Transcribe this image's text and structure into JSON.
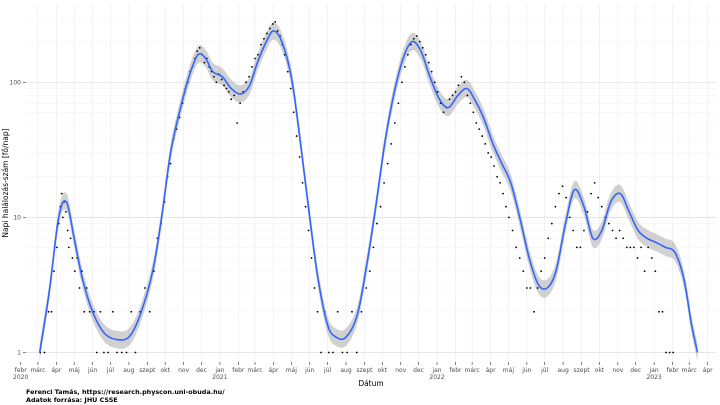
{
  "chart_data": {
    "type": "scatter",
    "title": "",
    "xlabel": "Dátum",
    "ylabel": "Napi halálozás-szám [fő/nap]",
    "y_scale": "log",
    "ylim": [
      0.85,
      380
    ],
    "y_ticks": [
      1,
      10,
      100
    ],
    "y_tick_labels": [
      "1",
      "10",
      "100"
    ],
    "xlim": [
      "2020-02-10",
      "2023-04-15"
    ],
    "x_ticks": [
      {
        "date": "2020-02-01",
        "label": "febr",
        "year": "2020"
      },
      {
        "date": "2020-03-01",
        "label": "márc",
        "year": ""
      },
      {
        "date": "2020-04-01",
        "label": "ápr",
        "year": ""
      },
      {
        "date": "2020-05-01",
        "label": "máj",
        "year": ""
      },
      {
        "date": "2020-06-01",
        "label": "jún",
        "year": ""
      },
      {
        "date": "2020-07-01",
        "label": "júl",
        "year": ""
      },
      {
        "date": "2020-08-01",
        "label": "aug",
        "year": ""
      },
      {
        "date": "2020-09-01",
        "label": "szept",
        "year": ""
      },
      {
        "date": "2020-10-01",
        "label": "okt",
        "year": ""
      },
      {
        "date": "2020-11-01",
        "label": "nov",
        "year": ""
      },
      {
        "date": "2020-12-01",
        "label": "dec",
        "year": ""
      },
      {
        "date": "2021-01-01",
        "label": "jan",
        "year": "2021"
      },
      {
        "date": "2021-02-01",
        "label": "febr",
        "year": ""
      },
      {
        "date": "2021-03-01",
        "label": "márc",
        "year": ""
      },
      {
        "date": "2021-04-01",
        "label": "ápr",
        "year": ""
      },
      {
        "date": "2021-05-01",
        "label": "máj",
        "year": ""
      },
      {
        "date": "2021-06-01",
        "label": "jún",
        "year": ""
      },
      {
        "date": "2021-07-01",
        "label": "júl",
        "year": ""
      },
      {
        "date": "2021-08-01",
        "label": "aug",
        "year": ""
      },
      {
        "date": "2021-09-01",
        "label": "szept",
        "year": ""
      },
      {
        "date": "2021-10-01",
        "label": "okt",
        "year": ""
      },
      {
        "date": "2021-11-01",
        "label": "nov",
        "year": ""
      },
      {
        "date": "2021-12-01",
        "label": "dec",
        "year": ""
      },
      {
        "date": "2022-01-01",
        "label": "jan",
        "year": "2022"
      },
      {
        "date": "2022-02-01",
        "label": "febr",
        "year": ""
      },
      {
        "date": "2022-03-01",
        "label": "márc",
        "year": ""
      },
      {
        "date": "2022-04-01",
        "label": "ápr",
        "year": ""
      },
      {
        "date": "2022-05-01",
        "label": "máj",
        "year": ""
      },
      {
        "date": "2022-06-01",
        "label": "jún",
        "year": ""
      },
      {
        "date": "2022-07-01",
        "label": "júl",
        "year": ""
      },
      {
        "date": "2022-08-01",
        "label": "aug",
        "year": ""
      },
      {
        "date": "2022-09-01",
        "label": "szept",
        "year": ""
      },
      {
        "date": "2022-10-01",
        "label": "okt",
        "year": ""
      },
      {
        "date": "2022-11-01",
        "label": "nov",
        "year": ""
      },
      {
        "date": "2022-12-01",
        "label": "dec",
        "year": ""
      },
      {
        "date": "2023-01-01",
        "label": "jan",
        "year": "2023"
      },
      {
        "date": "2023-02-01",
        "label": "febr",
        "year": ""
      },
      {
        "date": "2023-03-01",
        "label": "márc",
        "year": ""
      },
      {
        "date": "2023-04-01",
        "label": "ápr",
        "year": ""
      }
    ],
    "grid": true,
    "colors": {
      "points": "#000000",
      "trend": "#3366ff",
      "band": "#999999"
    },
    "trend": {
      "x": [
        "2020-03-04",
        "2020-03-20",
        "2020-04-05",
        "2020-04-18",
        "2020-05-01",
        "2020-05-15",
        "2020-06-01",
        "2020-06-20",
        "2020-07-10",
        "2020-08-01",
        "2020-08-20",
        "2020-09-10",
        "2020-09-25",
        "2020-10-10",
        "2020-10-25",
        "2020-11-10",
        "2020-11-25",
        "2020-12-08",
        "2020-12-20",
        "2021-01-05",
        "2021-01-20",
        "2021-02-05",
        "2021-02-20",
        "2021-03-05",
        "2021-03-20",
        "2021-04-01",
        "2021-04-15",
        "2021-05-01",
        "2021-05-15",
        "2021-06-01",
        "2021-06-15",
        "2021-07-01",
        "2021-07-15",
        "2021-08-01",
        "2021-08-20",
        "2021-09-05",
        "2021-09-20",
        "2021-10-05",
        "2021-10-20",
        "2021-11-05",
        "2021-11-20",
        "2021-12-05",
        "2021-12-20",
        "2022-01-05",
        "2022-01-20",
        "2022-02-05",
        "2022-02-20",
        "2022-03-05",
        "2022-03-20",
        "2022-04-05",
        "2022-04-20",
        "2022-05-05",
        "2022-05-20",
        "2022-06-05",
        "2022-06-20",
        "2022-07-05",
        "2022-07-20",
        "2022-08-05",
        "2022-08-20",
        "2022-09-05",
        "2022-09-20",
        "2022-10-05",
        "2022-10-20",
        "2022-11-05",
        "2022-11-20",
        "2022-12-05",
        "2022-12-20",
        "2023-01-05",
        "2023-01-20",
        "2023-02-05",
        "2023-02-20",
        "2023-03-05",
        "2023-03-15"
      ],
      "y": [
        1,
        2.8,
        10,
        13,
        7,
        3.5,
        2,
        1.4,
        1.25,
        1.3,
        1.9,
        4,
        10,
        30,
        60,
        110,
        160,
        150,
        120,
        110,
        90,
        82,
        95,
        140,
        200,
        240,
        200,
        110,
        40,
        10,
        3.5,
        1.6,
        1.3,
        1.3,
        1.9,
        4.5,
        12,
        35,
        80,
        150,
        200,
        170,
        110,
        75,
        65,
        80,
        90,
        75,
        55,
        35,
        25,
        18,
        10,
        5,
        3.2,
        3,
        4,
        9,
        16,
        12,
        7,
        8,
        13,
        15,
        11,
        8,
        7,
        6.5,
        6,
        5.5,
        3.5,
        1.6,
        1
      ]
    },
    "points": [
      [
        "2020-03-05",
        1
      ],
      [
        "2020-03-12",
        1
      ],
      [
        "2020-03-19",
        2
      ],
      [
        "2020-03-24",
        2
      ],
      [
        "2020-03-28",
        4
      ],
      [
        "2020-04-02",
        6
      ],
      [
        "2020-04-05",
        9
      ],
      [
        "2020-04-08",
        12
      ],
      [
        "2020-04-10",
        15
      ],
      [
        "2020-04-12",
        10
      ],
      [
        "2020-04-14",
        13
      ],
      [
        "2020-04-17",
        11
      ],
      [
        "2020-04-20",
        8
      ],
      [
        "2020-04-22",
        6
      ],
      [
        "2020-04-25",
        7
      ],
      [
        "2020-04-28",
        5
      ],
      [
        "2020-05-02",
        4
      ],
      [
        "2020-05-06",
        5
      ],
      [
        "2020-05-10",
        3
      ],
      [
        "2020-05-14",
        4
      ],
      [
        "2020-05-18",
        2
      ],
      [
        "2020-05-22",
        3
      ],
      [
        "2020-05-27",
        2
      ],
      [
        "2020-06-03",
        2
      ],
      [
        "2020-06-08",
        1
      ],
      [
        "2020-06-14",
        2
      ],
      [
        "2020-06-20",
        1
      ],
      [
        "2020-06-27",
        1
      ],
      [
        "2020-07-05",
        2
      ],
      [
        "2020-07-12",
        1
      ],
      [
        "2020-07-20",
        1
      ],
      [
        "2020-07-28",
        1
      ],
      [
        "2020-08-05",
        2
      ],
      [
        "2020-08-12",
        1
      ],
      [
        "2020-08-20",
        2
      ],
      [
        "2020-08-28",
        3
      ],
      [
        "2020-09-05",
        2
      ],
      [
        "2020-09-12",
        4
      ],
      [
        "2020-09-18",
        7
      ],
      [
        "2020-09-24",
        9
      ],
      [
        "2020-09-30",
        13
      ],
      [
        "2020-10-05",
        20
      ],
      [
        "2020-10-10",
        25
      ],
      [
        "2020-10-15",
        38
      ],
      [
        "2020-10-20",
        45
      ],
      [
        "2020-10-25",
        55
      ],
      [
        "2020-10-30",
        70
      ],
      [
        "2020-11-04",
        90
      ],
      [
        "2020-11-08",
        100
      ],
      [
        "2020-11-12",
        120
      ],
      [
        "2020-11-16",
        130
      ],
      [
        "2020-11-20",
        150
      ],
      [
        "2020-11-24",
        170
      ],
      [
        "2020-11-28",
        180
      ],
      [
        "2020-12-02",
        160
      ],
      [
        "2020-12-06",
        140
      ],
      [
        "2020-12-10",
        150
      ],
      [
        "2020-12-14",
        130
      ],
      [
        "2020-12-18",
        120
      ],
      [
        "2020-12-22",
        110
      ],
      [
        "2020-12-26",
        100
      ],
      [
        "2020-12-30",
        115
      ],
      [
        "2021-01-04",
        105
      ],
      [
        "2021-01-08",
        95
      ],
      [
        "2021-01-12",
        90
      ],
      [
        "2021-01-16",
        85
      ],
      [
        "2021-01-20",
        75
      ],
      [
        "2021-01-25",
        80
      ],
      [
        "2021-01-30",
        50
      ],
      [
        "2021-02-04",
        70
      ],
      [
        "2021-02-09",
        85
      ],
      [
        "2021-02-14",
        100
      ],
      [
        "2021-02-19",
        110
      ],
      [
        "2021-02-24",
        130
      ],
      [
        "2021-03-01",
        150
      ],
      [
        "2021-03-06",
        160
      ],
      [
        "2021-03-11",
        190
      ],
      [
        "2021-03-16",
        210
      ],
      [
        "2021-03-21",
        230
      ],
      [
        "2021-03-26",
        250
      ],
      [
        "2021-03-31",
        270
      ],
      [
        "2021-04-04",
        280
      ],
      [
        "2021-04-08",
        240
      ],
      [
        "2021-04-12",
        220
      ],
      [
        "2021-04-16",
        190
      ],
      [
        "2021-04-20",
        160
      ],
      [
        "2021-04-25",
        120
      ],
      [
        "2021-04-30",
        90
      ],
      [
        "2021-05-05",
        60
      ],
      [
        "2021-05-10",
        40
      ],
      [
        "2021-05-15",
        28
      ],
      [
        "2021-05-20",
        18
      ],
      [
        "2021-05-25",
        12
      ],
      [
        "2021-05-30",
        8
      ],
      [
        "2021-06-04",
        5
      ],
      [
        "2021-06-09",
        3
      ],
      [
        "2021-06-14",
        2
      ],
      [
        "2021-06-20",
        1
      ],
      [
        "2021-06-26",
        2
      ],
      [
        "2021-07-03",
        1
      ],
      [
        "2021-07-10",
        1
      ],
      [
        "2021-07-18",
        2
      ],
      [
        "2021-07-26",
        1
      ],
      [
        "2021-08-03",
        1
      ],
      [
        "2021-08-11",
        2
      ],
      [
        "2021-08-19",
        1
      ],
      [
        "2021-08-27",
        2
      ],
      [
        "2021-09-04",
        3
      ],
      [
        "2021-09-10",
        4
      ],
      [
        "2021-09-16",
        6
      ],
      [
        "2021-09-22",
        9
      ],
      [
        "2021-09-28",
        12
      ],
      [
        "2021-10-04",
        18
      ],
      [
        "2021-10-10",
        25
      ],
      [
        "2021-10-16",
        35
      ],
      [
        "2021-10-22",
        50
      ],
      [
        "2021-10-28",
        70
      ],
      [
        "2021-11-03",
        100
      ],
      [
        "2021-11-08",
        130
      ],
      [
        "2021-11-13",
        160
      ],
      [
        "2021-11-18",
        190
      ],
      [
        "2021-11-23",
        210
      ],
      [
        "2021-11-28",
        220
      ],
      [
        "2021-12-03",
        200
      ],
      [
        "2021-12-08",
        180
      ],
      [
        "2021-12-13",
        160
      ],
      [
        "2021-12-18",
        140
      ],
      [
        "2021-12-23",
        120
      ],
      [
        "2021-12-28",
        100
      ],
      [
        "2022-01-02",
        85
      ],
      [
        "2022-01-07",
        70
      ],
      [
        "2022-01-12",
        60
      ],
      [
        "2022-01-17",
        65
      ],
      [
        "2022-01-22",
        75
      ],
      [
        "2022-01-27",
        80
      ],
      [
        "2022-02-01",
        85
      ],
      [
        "2022-02-06",
        95
      ],
      [
        "2022-02-11",
        110
      ],
      [
        "2022-02-16",
        100
      ],
      [
        "2022-02-21",
        80
      ],
      [
        "2022-02-26",
        70
      ],
      [
        "2022-03-03",
        60
      ],
      [
        "2022-03-08",
        50
      ],
      [
        "2022-03-13",
        45
      ],
      [
        "2022-03-18",
        40
      ],
      [
        "2022-03-23",
        35
      ],
      [
        "2022-03-28",
        30
      ],
      [
        "2022-04-02",
        28
      ],
      [
        "2022-04-07",
        24
      ],
      [
        "2022-04-12",
        20
      ],
      [
        "2022-04-17",
        18
      ],
      [
        "2022-04-22",
        15
      ],
      [
        "2022-04-27",
        12
      ],
      [
        "2022-05-02",
        10
      ],
      [
        "2022-05-08",
        8
      ],
      [
        "2022-05-14",
        6
      ],
      [
        "2022-05-20",
        5
      ],
      [
        "2022-05-26",
        4
      ],
      [
        "2022-06-01",
        3
      ],
      [
        "2022-06-07",
        3
      ],
      [
        "2022-06-13",
        2
      ],
      [
        "2022-06-19",
        3
      ],
      [
        "2022-06-25",
        4
      ],
      [
        "2022-07-01",
        5
      ],
      [
        "2022-07-07",
        7
      ],
      [
        "2022-07-13",
        9
      ],
      [
        "2022-07-19",
        12
      ],
      [
        "2022-07-25",
        15
      ],
      [
        "2022-07-31",
        17
      ],
      [
        "2022-08-06",
        14
      ],
      [
        "2022-08-12",
        10
      ],
      [
        "2022-08-18",
        8
      ],
      [
        "2022-08-24",
        6
      ],
      [
        "2022-08-30",
        6
      ],
      [
        "2022-09-05",
        8
      ],
      [
        "2022-09-11",
        11
      ],
      [
        "2022-09-17",
        15
      ],
      [
        "2022-09-23",
        18
      ],
      [
        "2022-09-29",
        14
      ],
      [
        "2022-10-05",
        12
      ],
      [
        "2022-10-11",
        10
      ],
      [
        "2022-10-17",
        9
      ],
      [
        "2022-10-23",
        8
      ],
      [
        "2022-10-29",
        7
      ],
      [
        "2022-11-04",
        8
      ],
      [
        "2022-11-10",
        7
      ],
      [
        "2022-11-16",
        6
      ],
      [
        "2022-11-22",
        6
      ],
      [
        "2022-11-28",
        6
      ],
      [
        "2022-12-04",
        5
      ],
      [
        "2022-12-10",
        6
      ],
      [
        "2022-12-16",
        4
      ],
      [
        "2022-12-22",
        6
      ],
      [
        "2022-12-28",
        5
      ],
      [
        "2023-01-03",
        4
      ],
      [
        "2023-01-09",
        2
      ],
      [
        "2023-01-15",
        2
      ],
      [
        "2023-01-21",
        1
      ],
      [
        "2023-01-27",
        1
      ],
      [
        "2023-02-02",
        1
      ]
    ]
  },
  "caption": {
    "line1": "Ferenci Tamás, https://research.physcon.uni-obuda.hu/",
    "line2": "Adatok forrása: JHU CSSE"
  }
}
